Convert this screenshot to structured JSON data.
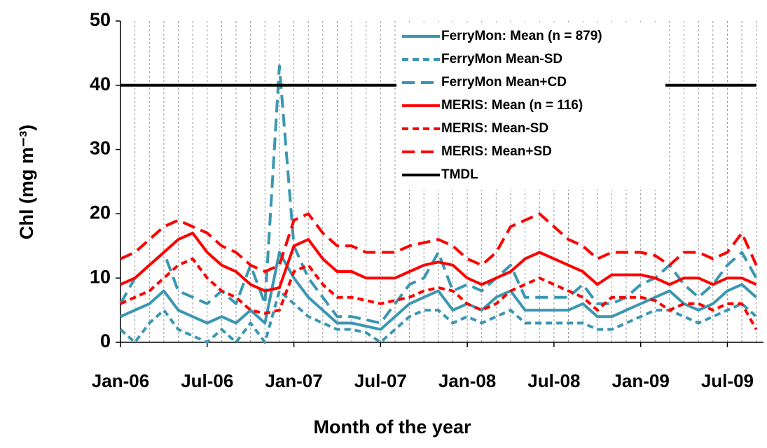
{
  "chart_data": {
    "type": "line",
    "y_label": "Chl (mg m⁻³)",
    "x_label": "Month of the year",
    "x": [
      0,
      1,
      2,
      3,
      4,
      5,
      6,
      7,
      8,
      9,
      10,
      11,
      12,
      13,
      14,
      15,
      16,
      17,
      18,
      19,
      20,
      21,
      22,
      23,
      24,
      25,
      26,
      27,
      28,
      29,
      30,
      31,
      32,
      33,
      34,
      35,
      36,
      37,
      38,
      39,
      40,
      41,
      42,
      43,
      44
    ],
    "xlim": [
      0,
      44.5
    ],
    "xticks": [
      {
        "value": 0,
        "label": "Jan-06"
      },
      {
        "value": 6,
        "label": "Jul-06"
      },
      {
        "value": 12,
        "label": "Jan-07"
      },
      {
        "value": 18,
        "label": "Jul-07"
      },
      {
        "value": 24,
        "label": "Jan-08"
      },
      {
        "value": 30,
        "label": "Jul-08"
      },
      {
        "value": 36,
        "label": "Jan-09"
      },
      {
        "value": 42,
        "label": "Jul-09"
      }
    ],
    "ylim": [
      0,
      50
    ],
    "yticks": [
      0,
      10,
      20,
      30,
      40,
      50
    ],
    "grid": true,
    "legend": "top-right",
    "series": [
      {
        "name": "FerryMon: Mean (n = 879)",
        "color": "#3a97b2",
        "style": "solid",
        "values": [
          4,
          5,
          6,
          8,
          5,
          4,
          3,
          4,
          3,
          5,
          3,
          14,
          10,
          7,
          5,
          3,
          3,
          2.5,
          2,
          4,
          6,
          7,
          8,
          5,
          6,
          5,
          7,
          8,
          5,
          5,
          5,
          5,
          6,
          4,
          4,
          5,
          6,
          7,
          8,
          6,
          5,
          6,
          8,
          9,
          7
        ]
      },
      {
        "name": "FerryMon Mean-SD",
        "color": "#3a97b2",
        "style": "short-dash",
        "values": [
          2,
          0,
          3,
          5,
          2,
          1,
          0,
          2,
          0,
          3,
          0,
          8,
          6,
          4,
          3,
          2,
          2,
          1.5,
          0,
          2,
          4,
          5,
          5,
          3,
          4,
          3,
          4,
          5,
          3,
          3,
          3,
          3,
          3,
          2,
          2,
          3,
          4,
          5,
          5,
          4,
          3,
          4,
          5,
          6,
          4
        ]
      },
      {
        "name": "FerryMon Mean+CD",
        "color": "#3a97b2",
        "style": "long-dash",
        "values": [
          6,
          10,
          12,
          14,
          8,
          7,
          6,
          8,
          6,
          12,
          6,
          43,
          15,
          10,
          7,
          4,
          4,
          3.5,
          3,
          6,
          9,
          10,
          14,
          8,
          9,
          8,
          10,
          12,
          7,
          7,
          7,
          7,
          9,
          6,
          6,
          7,
          9,
          10,
          12,
          9,
          7,
          9,
          12,
          14,
          10
        ]
      },
      {
        "name": "MERIS: Mean (n = 116)",
        "color": "#ff0000",
        "style": "solid",
        "values": [
          9,
          10,
          12,
          14,
          16,
          17,
          14,
          12,
          11,
          9,
          8,
          8.5,
          15,
          16,
          13,
          11,
          11,
          10,
          10,
          10,
          11,
          12,
          12.5,
          12,
          10,
          9,
          10,
          11,
          13,
          14,
          13,
          12,
          11,
          9,
          10.5,
          10.5,
          10.5,
          10,
          9,
          10,
          10,
          9,
          10,
          10,
          9
        ]
      },
      {
        "name": "MERIS: Mean-SD",
        "color": "#ff0000",
        "style": "short-dash",
        "values": [
          6,
          7,
          8,
          10,
          12,
          13,
          10,
          8,
          7,
          5,
          4.5,
          5,
          11,
          12,
          9,
          7,
          7,
          6.5,
          6,
          6.5,
          7,
          8,
          8.5,
          8,
          6,
          5,
          6,
          8,
          9,
          10,
          9,
          8,
          7,
          5,
          7,
          7,
          7,
          6.5,
          5,
          6,
          6,
          5,
          6,
          6,
          2
        ]
      },
      {
        "name": "MERIS: Mean+SD",
        "color": "#ff0000",
        "style": "long-dash",
        "values": [
          13,
          14,
          16,
          18,
          19,
          18,
          17,
          15,
          14,
          12,
          11,
          12,
          19,
          20,
          17,
          15,
          15,
          14,
          14,
          14,
          15,
          15.5,
          16,
          15,
          13,
          12,
          14,
          18,
          19,
          20,
          18,
          16,
          15,
          13,
          14,
          14,
          14,
          13.5,
          12,
          14,
          14,
          13,
          14,
          17,
          12
        ]
      },
      {
        "name": "TMDL",
        "color": "#000000",
        "style": "solid",
        "values": [
          40,
          40,
          40,
          40,
          40,
          40,
          40,
          40,
          40,
          40,
          40,
          40,
          40,
          40,
          40,
          40,
          40,
          40,
          40,
          40,
          40,
          40,
          40,
          40,
          40,
          40,
          40,
          40,
          40,
          40,
          40,
          40,
          40,
          40,
          40,
          40,
          40,
          40,
          40,
          40,
          40,
          40,
          40,
          40,
          40
        ]
      }
    ]
  }
}
